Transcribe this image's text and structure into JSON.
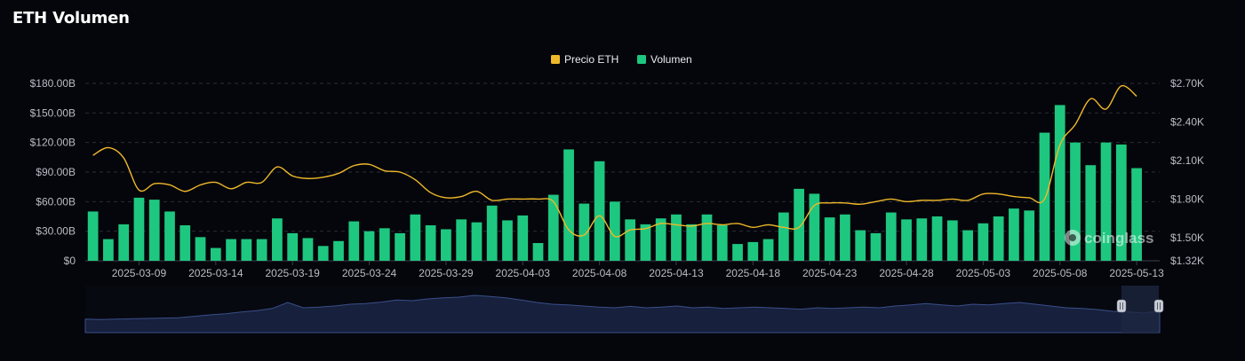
{
  "title": "ETH Volumen",
  "watermark": "coinglass",
  "colors": {
    "background": "#05060b",
    "price_line": "#f0b92a",
    "volume_bar": "#1ec77f",
    "grid": "#2a2d38",
    "navigator_fill": "#17203c",
    "navigator_line": "#3a4f8a",
    "navigator_selection": "#1e2740"
  },
  "chart_data": {
    "type": "bar",
    "legend": [
      {
        "name": "Precio ETH",
        "color": "#f0b92a"
      },
      {
        "name": "Volumen",
        "color": "#1ec77f"
      }
    ],
    "legend_position": "top-center",
    "grid": true,
    "x_tick_labels": [
      "2025-03-09",
      "2025-03-14",
      "2025-03-19",
      "2025-03-24",
      "2025-03-29",
      "2025-04-03",
      "2025-04-08",
      "2025-04-13",
      "2025-04-18",
      "2025-04-23",
      "2025-04-28",
      "2025-05-03",
      "2025-05-08",
      "2025-05-13"
    ],
    "y_left": {
      "ticks": [
        0,
        30,
        60,
        90,
        120,
        150,
        180
      ],
      "labels": [
        "$0",
        "$30.00B",
        "$60.00B",
        "$90.00B",
        "$120.00B",
        "$150.00B",
        "$180.00B"
      ],
      "ylim": [
        0,
        180
      ]
    },
    "y_right": {
      "ticks": [
        1.32,
        1.5,
        1.8,
        2.1,
        2.4,
        2.7
      ],
      "labels": [
        "$1.32K",
        "$1.50K",
        "$1.80K",
        "$2.10K",
        "$2.40K",
        "$2.70K"
      ],
      "ylim": [
        1.32,
        2.7
      ]
    },
    "x_range": [
      "2025-03-06",
      "2025-05-14"
    ],
    "series": [
      {
        "name": "Volumen",
        "axis": "left",
        "dates": [
          "2025-03-06",
          "2025-03-07",
          "2025-03-08",
          "2025-03-09",
          "2025-03-10",
          "2025-03-11",
          "2025-03-12",
          "2025-03-13",
          "2025-03-14",
          "2025-03-15",
          "2025-03-16",
          "2025-03-17",
          "2025-03-18",
          "2025-03-19",
          "2025-03-20",
          "2025-03-21",
          "2025-03-22",
          "2025-03-23",
          "2025-03-24",
          "2025-03-25",
          "2025-03-26",
          "2025-03-27",
          "2025-03-28",
          "2025-03-29",
          "2025-03-30",
          "2025-03-31",
          "2025-04-01",
          "2025-04-02",
          "2025-04-03",
          "2025-04-04",
          "2025-04-05",
          "2025-04-06",
          "2025-04-07",
          "2025-04-08",
          "2025-04-09",
          "2025-04-10",
          "2025-04-11",
          "2025-04-12",
          "2025-04-13",
          "2025-04-14",
          "2025-04-15",
          "2025-04-16",
          "2025-04-17",
          "2025-04-18",
          "2025-04-19",
          "2025-04-20",
          "2025-04-21",
          "2025-04-22",
          "2025-04-23",
          "2025-04-24",
          "2025-04-25",
          "2025-04-26",
          "2025-04-27",
          "2025-04-28",
          "2025-04-29",
          "2025-04-30",
          "2025-05-01",
          "2025-05-02",
          "2025-05-03",
          "2025-05-04",
          "2025-05-05",
          "2025-05-06",
          "2025-05-07",
          "2025-05-08",
          "2025-05-09",
          "2025-05-10",
          "2025-05-11",
          "2025-05-12",
          "2025-05-13",
          "2025-05-14"
        ],
        "values": [
          50,
          22,
          37,
          64,
          62,
          50,
          36,
          24,
          13,
          22,
          22,
          22,
          43,
          28,
          23,
          15,
          20,
          40,
          30,
          33,
          28,
          47,
          36,
          32,
          42,
          39,
          56,
          41,
          46,
          18,
          67,
          113,
          58,
          101,
          60,
          42,
          37,
          43,
          47,
          37,
          47,
          36,
          17,
          19,
          22,
          49,
          73,
          68,
          44,
          47,
          31,
          28,
          49,
          42,
          43,
          45,
          41,
          31,
          38,
          45,
          53,
          51,
          130,
          158,
          120,
          97,
          120,
          118,
          94,
          0
        ]
      },
      {
        "name": "Precio ETH",
        "axis": "right",
        "dates": [
          "2025-03-06",
          "2025-03-07",
          "2025-03-08",
          "2025-03-09",
          "2025-03-10",
          "2025-03-11",
          "2025-03-12",
          "2025-03-13",
          "2025-03-14",
          "2025-03-15",
          "2025-03-16",
          "2025-03-17",
          "2025-03-18",
          "2025-03-19",
          "2025-03-20",
          "2025-03-21",
          "2025-03-22",
          "2025-03-23",
          "2025-03-24",
          "2025-03-25",
          "2025-03-26",
          "2025-03-27",
          "2025-03-28",
          "2025-03-29",
          "2025-03-30",
          "2025-03-31",
          "2025-04-01",
          "2025-04-02",
          "2025-04-03",
          "2025-04-04",
          "2025-04-05",
          "2025-04-06",
          "2025-04-07",
          "2025-04-08",
          "2025-04-09",
          "2025-04-10",
          "2025-04-11",
          "2025-04-12",
          "2025-04-13",
          "2025-04-14",
          "2025-04-15",
          "2025-04-16",
          "2025-04-17",
          "2025-04-18",
          "2025-04-19",
          "2025-04-20",
          "2025-04-21",
          "2025-04-22",
          "2025-04-23",
          "2025-04-24",
          "2025-04-25",
          "2025-04-26",
          "2025-04-27",
          "2025-04-28",
          "2025-04-29",
          "2025-04-30",
          "2025-05-01",
          "2025-05-02",
          "2025-05-03",
          "2025-05-04",
          "2025-05-05",
          "2025-05-06",
          "2025-05-07",
          "2025-05-08",
          "2025-05-09",
          "2025-05-10",
          "2025-05-11",
          "2025-05-12",
          "2025-05-13"
        ],
        "values": [
          2.14,
          2.2,
          2.12,
          1.87,
          1.92,
          1.91,
          1.86,
          1.91,
          1.93,
          1.88,
          1.93,
          1.93,
          2.05,
          1.98,
          1.96,
          1.97,
          2.0,
          2.06,
          2.07,
          2.02,
          2.01,
          1.95,
          1.85,
          1.81,
          1.82,
          1.86,
          1.79,
          1.8,
          1.8,
          1.8,
          1.78,
          1.56,
          1.52,
          1.67,
          1.51,
          1.56,
          1.57,
          1.61,
          1.6,
          1.59,
          1.61,
          1.6,
          1.61,
          1.58,
          1.6,
          1.58,
          1.58,
          1.75,
          1.77,
          1.77,
          1.76,
          1.78,
          1.8,
          1.78,
          1.79,
          1.79,
          1.8,
          1.79,
          1.84,
          1.84,
          1.82,
          1.81,
          1.8,
          2.22,
          2.38,
          2.58,
          2.5,
          2.68,
          2.6
        ]
      }
    ],
    "navigator": {
      "values": [
        0.18,
        0.17,
        0.18,
        0.19,
        0.2,
        0.21,
        0.22,
        0.26,
        0.3,
        0.33,
        0.38,
        0.42,
        0.48,
        0.65,
        0.5,
        0.52,
        0.55,
        0.6,
        0.62,
        0.66,
        0.72,
        0.7,
        0.75,
        0.78,
        0.8,
        0.85,
        0.82,
        0.78,
        0.72,
        0.65,
        0.6,
        0.58,
        0.55,
        0.52,
        0.5,
        0.54,
        0.5,
        0.52,
        0.55,
        0.5,
        0.52,
        0.48,
        0.5,
        0.52,
        0.5,
        0.48,
        0.46,
        0.5,
        0.48,
        0.5,
        0.52,
        0.5,
        0.55,
        0.58,
        0.62,
        0.58,
        0.55,
        0.6,
        0.58,
        0.62,
        0.65,
        0.6,
        0.55,
        0.5,
        0.48,
        0.45,
        0.4,
        0.38,
        0.35,
        0.42
      ]
    }
  }
}
